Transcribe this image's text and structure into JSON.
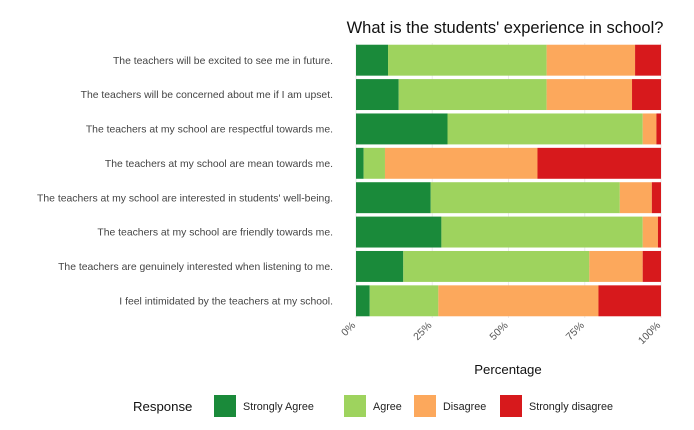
{
  "chart_data": {
    "type": "bar",
    "orientation": "horizontal",
    "stacked": "percent",
    "title": "What is the students' experience in school?",
    "xlabel": "Percentage",
    "ylabel": "",
    "xlim": [
      0,
      100
    ],
    "xticks": [
      "0%",
      "25%",
      "50%",
      "75%",
      "100%"
    ],
    "grid": true,
    "legend": {
      "title": "Response",
      "position": "bottom"
    },
    "categories": [
      "The teachers will be excited to see me in future.",
      "The teachers will be concerned about me if I am upset.",
      "The teachers at my school are respectful towards me.",
      "The teachers at my school are mean towards me.",
      "The teachers at my school are interested in students' well-being.",
      "The teachers at my school are friendly towards me.",
      "The teachers are genuinely interested when listening to me.",
      "I feel intimidated by the teachers at my school."
    ],
    "series": [
      {
        "name": "Strongly Agree",
        "color": "#1a8a3a",
        "values": [
          10.5,
          14,
          30,
          2.5,
          24.5,
          28,
          15.5,
          4.5
        ]
      },
      {
        "name": "Agree",
        "color": "#9ed35e",
        "values": [
          52,
          48.5,
          64,
          7,
          62,
          66,
          61,
          22.5
        ]
      },
      {
        "name": "Disagree",
        "color": "#fca85c",
        "values": [
          29,
          28,
          4.5,
          50,
          10.5,
          5,
          17.5,
          52.5
        ]
      },
      {
        "name": "Strongly disagree",
        "color": "#d7191c",
        "values": [
          8.5,
          9.5,
          1.5,
          40.5,
          3,
          1,
          6,
          20.5
        ]
      }
    ]
  }
}
